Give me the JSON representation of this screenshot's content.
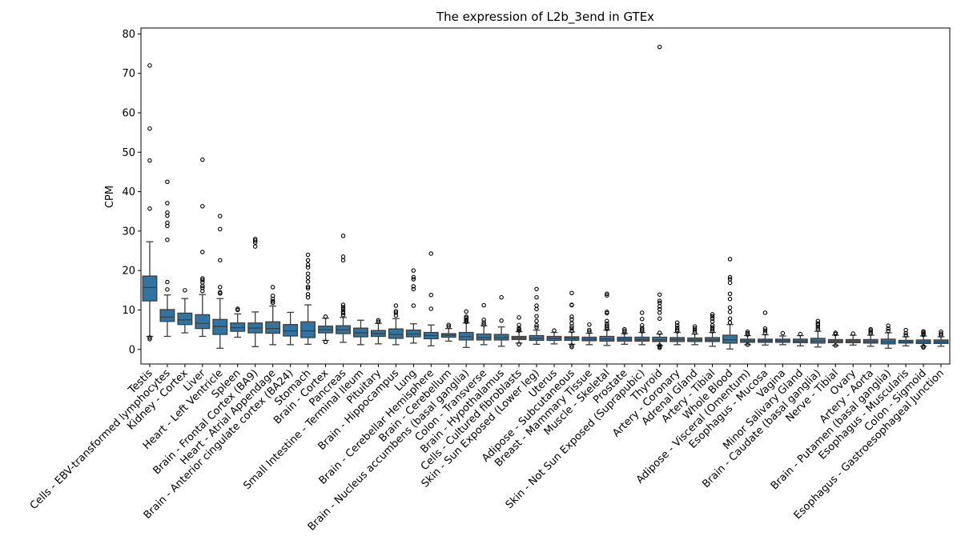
{
  "chart_data": {
    "type": "box",
    "title": "The expression of L2b_3end in GTEx",
    "xlabel": "",
    "ylabel": "CPM",
    "ylim": [
      -3.7,
      81.5
    ],
    "yticks": [
      0,
      10,
      20,
      30,
      40,
      50,
      60,
      70,
      80
    ],
    "colors": {
      "box": "#3274a1",
      "whisker": "#3d3d3d",
      "flier": "#000000"
    },
    "categories": [
      "Testis",
      "Cells - EBV-transformed lymphocytes",
      "Kidney - Cortex",
      "Liver",
      "Heart - Left Ventricle",
      "Spleen",
      "Brain - Frontal Cortex (BA9)",
      "Heart - Atrial Appendage",
      "Brain - Anterior cingulate cortex (BA24)",
      "Stomach",
      "Brain - Cortex",
      "Pancreas",
      "Small Intestine - Terminal Ileum",
      "Pituitary",
      "Brain - Hippocampus",
      "Lung",
      "Brain - Cerebellar Hemisphere",
      "Brain - Cerebellum",
      "Brain - Nucleus accumbens (basal ganglia)",
      "Colon - Transverse",
      "Brain - Hypothalamus",
      "Cells - Cultured fibroblasts",
      "Skin - Sun Exposed (Lower leg)",
      "Uterus",
      "Adipose - Subcutaneous",
      "Breast - Mammary Tissue",
      "Muscle - Skeletal",
      "Prostate",
      "Skin - Not Sun Exposed (Suprapubic)",
      "Thyroid",
      "Artery - Coronary",
      "Adrenal Gland",
      "Artery - Tibial",
      "Whole Blood",
      "Adipose - Visceral (Omentum)",
      "Esophagus - Mucosa",
      "Vagina",
      "Minor Salivary Gland",
      "Brain - Caudate (basal ganglia)",
      "Nerve - Tibial",
      "Ovary",
      "Artery - Aorta",
      "Brain - Putamen (basal ganglia)",
      "Esophagus - Muscularis",
      "Colon - Sigmoid",
      "Esophagus - Gastroesophageal Junction"
    ],
    "boxes": [
      {
        "q1": 12.3,
        "median": 15.7,
        "q3": 18.6,
        "low": 3.3,
        "high": 27.3,
        "fliers": [
          2.6,
          3.0,
          35.7,
          47.9,
          56.0,
          72.0
        ]
      },
      {
        "q1": 7.1,
        "median": 8.2,
        "q3": 10.1,
        "low": 3.3,
        "high": 13.8,
        "fliers": [
          15.2,
          17.1,
          27.8,
          31.3,
          32.1,
          33.9,
          34.7,
          37.1,
          42.5
        ]
      },
      {
        "q1": 6.3,
        "median": 7.5,
        "q3": 9.2,
        "low": 4.2,
        "high": 12.9,
        "fliers": [
          15.0
        ]
      },
      {
        "q1": 5.3,
        "median": 6.6,
        "q3": 8.8,
        "low": 3.3,
        "high": 13.9,
        "fliers": [
          14.8,
          15.6,
          16.1,
          17.0,
          17.6,
          18.0,
          24.7,
          36.3,
          48.1
        ]
      },
      {
        "q1": 3.8,
        "median": 5.8,
        "q3": 7.6,
        "low": 0.3,
        "high": 12.9,
        "fliers": [
          14.2,
          14.5,
          15.8,
          22.6,
          30.5,
          33.8
        ]
      },
      {
        "q1": 4.6,
        "median": 5.5,
        "q3": 6.7,
        "low": 3.1,
        "high": 9.0,
        "fliers": [
          10.0,
          10.3
        ]
      },
      {
        "q1": 4.2,
        "median": 5.4,
        "q3": 6.7,
        "low": 0.7,
        "high": 9.5,
        "fliers": [
          26.1,
          27.1,
          27.6,
          28.0
        ]
      },
      {
        "q1": 4.1,
        "median": 5.3,
        "q3": 7.0,
        "low": 1.2,
        "high": 11.0,
        "fliers": [
          11.8,
          12.2,
          12.8,
          13.6,
          15.8
        ]
      },
      {
        "q1": 3.4,
        "median": 4.7,
        "q3": 6.3,
        "low": 1.2,
        "high": 9.4,
        "fliers": []
      },
      {
        "q1": 3.0,
        "median": 4.7,
        "q3": 7.0,
        "low": 1.3,
        "high": 11.3,
        "fliers": [
          13.2,
          14.0,
          15.5,
          15.9,
          17.2,
          18.2,
          19.2,
          20.8,
          21.5,
          22.6,
          24.0
        ]
      },
      {
        "q1": 4.2,
        "median": 5.0,
        "q3": 5.9,
        "low": 2.3,
        "high": 7.9,
        "fliers": [
          1.9,
          8.3
        ]
      },
      {
        "q1": 4.0,
        "median": 5.0,
        "q3": 6.0,
        "low": 1.8,
        "high": 8.1,
        "fliers": [
          8.7,
          9.2,
          9.6,
          10.2,
          10.7,
          11.3,
          22.6,
          23.5,
          28.8
        ]
      },
      {
        "q1": 3.2,
        "median": 4.2,
        "q3": 5.4,
        "low": 1.2,
        "high": 7.4,
        "fliers": []
      },
      {
        "q1": 3.3,
        "median": 4.0,
        "q3": 4.8,
        "low": 1.4,
        "high": 6.6,
        "fliers": [
          7.0,
          7.4
        ]
      },
      {
        "q1": 2.8,
        "median": 3.8,
        "q3": 5.2,
        "low": 1.2,
        "high": 7.8,
        "fliers": [
          8.6,
          9.3,
          9.7,
          11.1
        ]
      },
      {
        "q1": 3.2,
        "median": 3.9,
        "q3": 4.9,
        "low": 1.6,
        "high": 6.5,
        "fliers": [
          11.1,
          15.3,
          16.0,
          17.8,
          18.3,
          20.0
        ]
      },
      {
        "q1": 2.7,
        "median": 3.5,
        "q3": 4.3,
        "low": 0.9,
        "high": 6.2,
        "fliers": [
          10.3,
          13.8,
          24.3
        ]
      },
      {
        "q1": 3.1,
        "median": 3.6,
        "q3": 4.0,
        "low": 2.1,
        "high": 5.3,
        "fliers": [
          5.8,
          6.2
        ]
      },
      {
        "q1": 2.4,
        "median": 3.2,
        "q3": 4.3,
        "low": 0.5,
        "high": 6.7,
        "fliers": [
          7.0,
          7.3,
          7.6,
          8.0,
          8.3,
          9.6
        ]
      },
      {
        "q1": 2.4,
        "median": 3.0,
        "q3": 3.9,
        "low": 1.2,
        "high": 6.0,
        "fliers": [
          6.3,
          6.8,
          7.5,
          11.2
        ]
      },
      {
        "q1": 2.4,
        "median": 3.0,
        "q3": 3.8,
        "low": 0.8,
        "high": 5.7,
        "fliers": [
          7.3,
          13.2
        ]
      },
      {
        "q1": 2.5,
        "median": 2.9,
        "q3": 3.3,
        "low": 1.6,
        "high": 4.5,
        "fliers": [
          1.3,
          4.8,
          5.1,
          5.4,
          6.2,
          8.1
        ]
      },
      {
        "q1": 2.3,
        "median": 2.8,
        "q3": 3.5,
        "low": 1.3,
        "high": 4.9,
        "fliers": [
          5.6,
          6.1,
          7.2,
          8.4,
          10.2,
          11.1,
          13.2,
          15.3
        ]
      },
      {
        "q1": 2.3,
        "median": 2.8,
        "q3": 3.3,
        "low": 1.4,
        "high": 4.3,
        "fliers": [
          4.8
        ]
      },
      {
        "q1": 2.3,
        "median": 2.8,
        "q3": 3.2,
        "low": 1.3,
        "high": 4.4,
        "fliers": [
          0.6,
          1.0,
          4.7,
          5.3,
          5.8,
          6.6,
          7.6,
          8.3,
          11.2,
          11.3,
          14.3
        ]
      },
      {
        "q1": 2.2,
        "median": 2.6,
        "q3": 3.1,
        "low": 1.2,
        "high": 4.1,
        "fliers": [
          4.5,
          4.9,
          6.3
        ]
      },
      {
        "q1": 2.1,
        "median": 2.6,
        "q3": 3.3,
        "low": 1.0,
        "high": 4.9,
        "fliers": [
          5.2,
          5.6,
          6.0,
          6.5,
          7.2,
          9.2,
          9.5,
          13.7,
          14.1
        ]
      },
      {
        "q1": 2.1,
        "median": 2.6,
        "q3": 3.1,
        "low": 1.3,
        "high": 4.0,
        "fliers": [
          4.3,
          4.7,
          5.1
        ]
      },
      {
        "q1": 2.1,
        "median": 2.5,
        "q3": 3.1,
        "low": 1.2,
        "high": 4.3,
        "fliers": [
          4.6,
          5.0,
          5.4,
          6.1,
          7.7,
          9.3
        ]
      },
      {
        "q1": 2.0,
        "median": 2.4,
        "q3": 3.1,
        "low": 1.0,
        "high": 3.9,
        "fliers": [
          0.4,
          0.7,
          1.0,
          4.2,
          7.8,
          9.3,
          10.2,
          10.9,
          11.8,
          12.3,
          13.9,
          76.7
        ]
      },
      {
        "q1": 2.0,
        "median": 2.5,
        "q3": 3.0,
        "low": 1.2,
        "high": 4.3,
        "fliers": [
          4.6,
          5.0,
          5.5,
          6.1,
          6.8
        ]
      },
      {
        "q1": 2.0,
        "median": 2.4,
        "q3": 2.9,
        "low": 1.2,
        "high": 3.9,
        "fliers": [
          4.3,
          4.8,
          5.3,
          5.8
        ]
      },
      {
        "q1": 2.0,
        "median": 2.4,
        "q3": 3.0,
        "low": 0.8,
        "high": 4.3,
        "fliers": [
          4.6,
          5.1,
          5.6,
          6.1,
          7.1,
          7.8,
          8.4,
          8.9
        ]
      },
      {
        "q1": 1.6,
        "median": 2.4,
        "q3": 3.6,
        "low": 0.1,
        "high": 6.3,
        "fliers": [
          6.8,
          7.8,
          9.5,
          10.6,
          12.8,
          14.1,
          16.9,
          17.8,
          18.3,
          22.9
        ]
      },
      {
        "q1": 1.8,
        "median": 2.2,
        "q3": 2.6,
        "low": 1.2,
        "high": 3.5,
        "fliers": [
          1.2,
          3.8,
          4.1,
          4.5
        ]
      },
      {
        "q1": 1.8,
        "median": 2.2,
        "q3": 2.6,
        "low": 1.1,
        "high": 3.7,
        "fliers": [
          4.2,
          4.8,
          5.3,
          9.3
        ]
      },
      {
        "q1": 1.8,
        "median": 2.2,
        "q3": 2.6,
        "low": 1.2,
        "high": 3.4,
        "fliers": [
          4.1
        ]
      },
      {
        "q1": 1.7,
        "median": 2.1,
        "q3": 2.6,
        "low": 0.9,
        "high": 3.5,
        "fliers": [
          3.9
        ]
      },
      {
        "q1": 1.6,
        "median": 2.1,
        "q3": 2.8,
        "low": 0.6,
        "high": 4.6,
        "fliers": [
          5.1,
          5.6,
          6.2,
          6.6,
          7.2
        ]
      },
      {
        "q1": 1.7,
        "median": 2.1,
        "q3": 2.5,
        "low": 1.0,
        "high": 3.6,
        "fliers": [
          1.0,
          3.9,
          4.2
        ]
      },
      {
        "q1": 1.7,
        "median": 2.1,
        "q3": 2.5,
        "low": 1.1,
        "high": 3.6,
        "fliers": [
          4.0
        ]
      },
      {
        "q1": 1.6,
        "median": 2.0,
        "q3": 2.5,
        "low": 0.8,
        "high": 3.6,
        "fliers": [
          4.0,
          4.4,
          4.8,
          5.1
        ]
      },
      {
        "q1": 1.4,
        "median": 1.9,
        "q3": 2.6,
        "low": 0.3,
        "high": 4.2,
        "fliers": [
          4.7,
          5.3,
          6.0
        ]
      },
      {
        "q1": 1.6,
        "median": 1.9,
        "q3": 2.3,
        "low": 0.9,
        "high": 3.2,
        "fliers": [
          3.6,
          4.1,
          4.9
        ]
      },
      {
        "q1": 1.5,
        "median": 1.9,
        "q3": 2.4,
        "low": 0.8,
        "high": 3.4,
        "fliers": [
          0.5,
          0.8,
          3.7,
          4.0,
          4.3,
          4.6
        ]
      },
      {
        "q1": 1.5,
        "median": 1.9,
        "q3": 2.4,
        "low": 0.8,
        "high": 3.2,
        "fliers": [
          3.6,
          4.0,
          4.5
        ]
      }
    ]
  }
}
